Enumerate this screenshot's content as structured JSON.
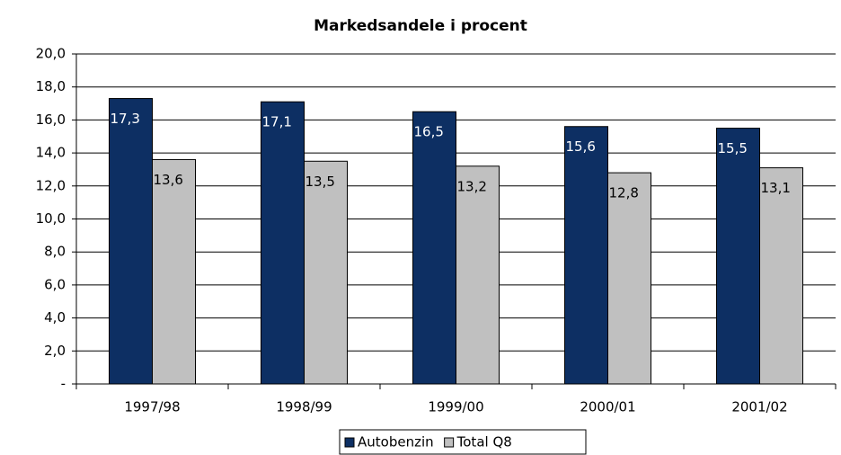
{
  "chart_data": {
    "type": "bar",
    "title": "Markedsandele i procent",
    "categories": [
      "1997/98",
      "1998/99",
      "1999/00",
      "2000/01",
      "2001/02"
    ],
    "series": [
      {
        "name": "Autobenzin",
        "color": "#0d2f63",
        "values": [
          17.3,
          17.1,
          16.5,
          15.6,
          15.5
        ],
        "value_labels": [
          "17,3",
          "17,1",
          "16,5",
          "15,6",
          "15,5"
        ]
      },
      {
        "name": "Total Q8",
        "color": "#c0c0c0",
        "values": [
          13.6,
          13.5,
          13.2,
          12.8,
          13.1
        ],
        "value_labels": [
          "13,6",
          "13,5",
          "13,2",
          "12,8",
          "13,1"
        ]
      }
    ],
    "ylim": [
      0,
      20
    ],
    "yticks": [
      {
        "value": 0,
        "label": "-"
      },
      {
        "value": 2,
        "label": "2,0"
      },
      {
        "value": 4,
        "label": "4,0"
      },
      {
        "value": 6,
        "label": "6,0"
      },
      {
        "value": 8,
        "label": "8,0"
      },
      {
        "value": 10,
        "label": "10,0"
      },
      {
        "value": 12,
        "label": "12,0"
      },
      {
        "value": 14,
        "label": "14,0"
      },
      {
        "value": 16,
        "label": "16,0"
      },
      {
        "value": 18,
        "label": "18,0"
      },
      {
        "value": 20,
        "label": "20,0"
      }
    ],
    "grid": true,
    "legend": "bottom"
  }
}
